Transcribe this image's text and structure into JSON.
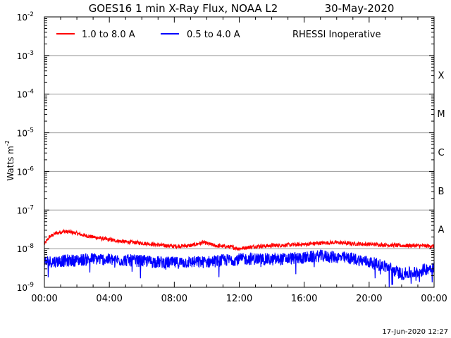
{
  "chart_data": {
    "type": "line",
    "title": "GOES16 1 min X-Ray Flux, NOAA L2",
    "date": "30-May-2020",
    "ylabel_base": "Watts m",
    "ylabel_exp": "-2",
    "xlabel": "",
    "y_scale": "log",
    "ylim": [
      1e-09,
      0.01
    ],
    "xlim_hours": [
      0,
      24
    ],
    "y_ticks": [
      {
        "base": "10",
        "exp": "-9",
        "value": 1e-09
      },
      {
        "base": "10",
        "exp": "-8",
        "value": 1e-08
      },
      {
        "base": "10",
        "exp": "-7",
        "value": 1e-07
      },
      {
        "base": "10",
        "exp": "-6",
        "value": 1e-06
      },
      {
        "base": "10",
        "exp": "-5",
        "value": 1e-05
      },
      {
        "base": "10",
        "exp": "-4",
        "value": 0.0001
      },
      {
        "base": "10",
        "exp": "-3",
        "value": 0.001
      },
      {
        "base": "10",
        "exp": "-2",
        "value": 0.01
      }
    ],
    "x_ticks": [
      {
        "label": "00:00",
        "hour": 0
      },
      {
        "label": "04:00",
        "hour": 4
      },
      {
        "label": "08:00",
        "hour": 8
      },
      {
        "label": "12:00",
        "hour": 12
      },
      {
        "label": "16:00",
        "hour": 16
      },
      {
        "label": "20:00",
        "hour": 20
      },
      {
        "label": "00:00",
        "hour": 24
      }
    ],
    "flare_classes": [
      {
        "label": "A",
        "value": 1e-08
      },
      {
        "label": "B",
        "value": 1e-07
      },
      {
        "label": "C",
        "value": 1e-06
      },
      {
        "label": "M",
        "value": 1e-05
      },
      {
        "label": "X",
        "value": 0.0001
      }
    ],
    "gridlines_at": [
      1e-08,
      1e-07,
      1e-06,
      1e-05,
      0.0001,
      0.001
    ],
    "legend_position": "top-left",
    "annotation": "RHESSI Inoperative",
    "footer_timestamp": "17-Jun-2020 12:27",
    "series": [
      {
        "name": "1.0 to 8.0 A",
        "color": "#ff0000",
        "noise": 0.05,
        "points": [
          [
            0,
            1.3e-08
          ],
          [
            0.3,
            2e-08
          ],
          [
            0.7,
            2.5e-08
          ],
          [
            1.2,
            2.8e-08
          ],
          [
            1.8,
            2.6e-08
          ],
          [
            2.5,
            2.2e-08
          ],
          [
            3.0,
            2e-08
          ],
          [
            4.0,
            1.7e-08
          ],
          [
            5.0,
            1.5e-08
          ],
          [
            6.0,
            1.4e-08
          ],
          [
            7.0,
            1.25e-08
          ],
          [
            8.0,
            1.15e-08
          ],
          [
            9.0,
            1.2e-08
          ],
          [
            9.8,
            1.45e-08
          ],
          [
            10.5,
            1.2e-08
          ],
          [
            11.5,
            1.1e-08
          ],
          [
            12.0,
            1e-08
          ],
          [
            13.0,
            1.15e-08
          ],
          [
            14.0,
            1.2e-08
          ],
          [
            15.0,
            1.25e-08
          ],
          [
            16.0,
            1.3e-08
          ],
          [
            17.0,
            1.4e-08
          ],
          [
            18.0,
            1.45e-08
          ],
          [
            19.0,
            1.35e-08
          ],
          [
            20.0,
            1.3e-08
          ],
          [
            21.0,
            1.25e-08
          ],
          [
            22.0,
            1.2e-08
          ],
          [
            23.0,
            1.2e-08
          ],
          [
            24.0,
            1.15e-08
          ]
        ]
      },
      {
        "name": "0.5 to 4.0 A",
        "color": "#0000ff",
        "noise": 0.16,
        "points": [
          [
            0,
            4.5e-09
          ],
          [
            1.0,
            4.8e-09
          ],
          [
            2.0,
            5e-09
          ],
          [
            3.0,
            5.5e-09
          ],
          [
            4.0,
            5.2e-09
          ],
          [
            5.0,
            5e-09
          ],
          [
            6.0,
            4.8e-09
          ],
          [
            7.0,
            4.5e-09
          ],
          [
            8.0,
            4.3e-09
          ],
          [
            9.0,
            4.5e-09
          ],
          [
            10.0,
            4.5e-09
          ],
          [
            11.0,
            5e-09
          ],
          [
            12.0,
            5.3e-09
          ],
          [
            13.0,
            5.5e-09
          ],
          [
            14.0,
            5.2e-09
          ],
          [
            15.0,
            5.5e-09
          ],
          [
            16.0,
            5.8e-09
          ],
          [
            17.0,
            6.5e-09
          ],
          [
            18.0,
            6e-09
          ],
          [
            19.0,
            5.5e-09
          ],
          [
            20.0,
            4.5e-09
          ],
          [
            21.0,
            3.5e-09
          ],
          [
            22.0,
            2.2e-09
          ],
          [
            23.0,
            2.5e-09
          ],
          [
            24.0,
            3.5e-09
          ]
        ]
      }
    ]
  }
}
